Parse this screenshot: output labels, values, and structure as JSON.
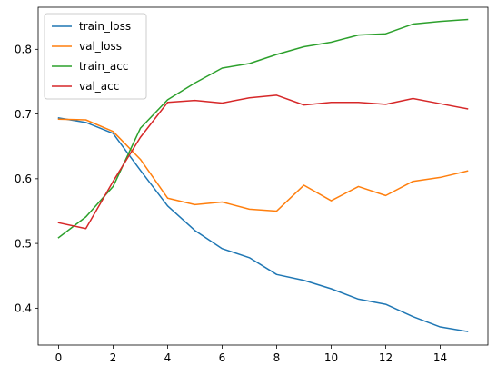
{
  "chart_data": {
    "type": "line",
    "title": "",
    "xlabel": "",
    "ylabel": "",
    "x": [
      0,
      1,
      2,
      3,
      4,
      5,
      6,
      7,
      8,
      9,
      10,
      11,
      12,
      13,
      14,
      15
    ],
    "xlim": [
      -0.75,
      15.75
    ],
    "ylim": [
      0.343,
      0.865
    ],
    "x_ticks": [
      0,
      2,
      4,
      6,
      8,
      10,
      12,
      14
    ],
    "y_ticks": [
      0.4,
      0.5,
      0.6,
      0.7,
      0.8
    ],
    "x_tick_labels": [
      "0",
      "2",
      "4",
      "6",
      "8",
      "10",
      "12",
      "14"
    ],
    "y_tick_labels": [
      "0.4",
      "0.5",
      "0.6",
      "0.7",
      "0.8"
    ],
    "grid": false,
    "legend_position": "top-left",
    "series": [
      {
        "name": "train_loss",
        "color": "#1f77b4",
        "values": [
          0.694,
          0.687,
          0.67,
          0.613,
          0.558,
          0.52,
          0.492,
          0.478,
          0.452,
          0.443,
          0.43,
          0.414,
          0.406,
          0.387,
          0.371,
          0.364
        ]
      },
      {
        "name": "val_loss",
        "color": "#ff7f0e",
        "values": [
          0.692,
          0.691,
          0.673,
          0.63,
          0.57,
          0.56,
          0.564,
          0.553,
          0.55,
          0.59,
          0.566,
          0.588,
          0.574,
          0.596,
          0.602,
          0.612
        ]
      },
      {
        "name": "train_acc",
        "color": "#2ca02c",
        "values": [
          0.509,
          0.541,
          0.588,
          0.678,
          0.722,
          0.748,
          0.771,
          0.778,
          0.792,
          0.804,
          0.811,
          0.822,
          0.824,
          0.839,
          0.843,
          0.846
        ]
      },
      {
        "name": "val_acc",
        "color": "#d62728",
        "values": [
          0.532,
          0.523,
          0.596,
          0.664,
          0.718,
          0.721,
          0.717,
          0.725,
          0.729,
          0.714,
          0.718,
          0.718,
          0.715,
          0.724,
          0.716,
          0.708
        ]
      }
    ]
  }
}
